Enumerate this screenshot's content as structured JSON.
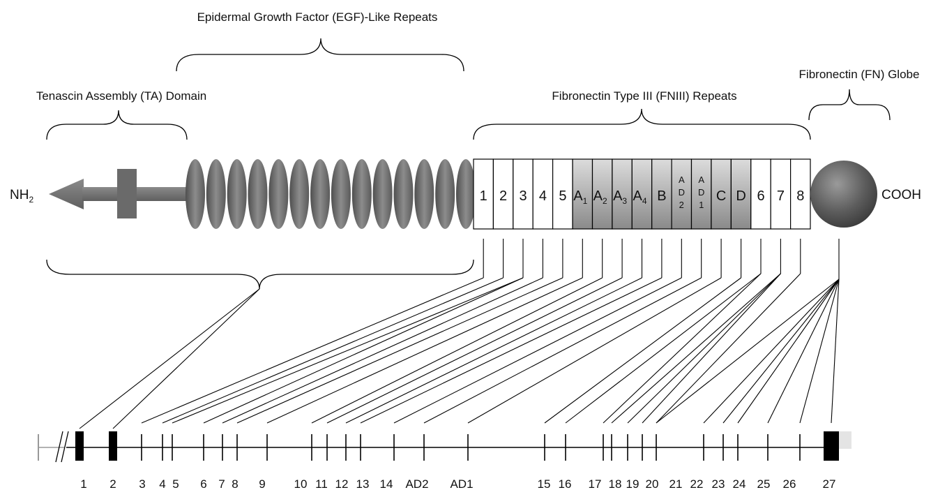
{
  "labels": {
    "egf_repeats": "Epidermal Growth Factor (EGF)-Like Repeats",
    "ta_domain": "Tenascin Assembly (TA) Domain",
    "fniii_repeats": "Fibronectin Type III (FNIII) Repeats",
    "fn_globe": "Fibronectin (FN) Globe",
    "n_terminus": "NH2",
    "n_terminus_main": "NH",
    "n_terminus_sub": "2",
    "c_terminus": "COOH"
  },
  "fniii_boxes": [
    {
      "id": "1",
      "main": "1"
    },
    {
      "id": "2",
      "main": "2"
    },
    {
      "id": "3",
      "main": "3"
    },
    {
      "id": "4",
      "main": "4"
    },
    {
      "id": "5",
      "main": "5"
    },
    {
      "id": "A1",
      "main": "A",
      "sub": "1",
      "shaded": true
    },
    {
      "id": "A2",
      "main": "A",
      "sub": "2",
      "shaded": true
    },
    {
      "id": "A3",
      "main": "A",
      "sub": "3",
      "shaded": true
    },
    {
      "id": "A4",
      "main": "A",
      "sub": "4",
      "shaded": true
    },
    {
      "id": "B",
      "main": "B",
      "shaded": true
    },
    {
      "id": "AD2",
      "stack": [
        "A",
        "D",
        "2"
      ],
      "shaded": true
    },
    {
      "id": "AD1",
      "stack": [
        "A",
        "D",
        "1"
      ],
      "shaded": true
    },
    {
      "id": "C",
      "main": "C",
      "shaded": true
    },
    {
      "id": "D",
      "main": "D",
      "shaded": true
    },
    {
      "id": "6",
      "main": "6"
    },
    {
      "id": "7",
      "main": "7"
    },
    {
      "id": "8",
      "main": "8"
    }
  ],
  "egf_repeat_count": 14,
  "exons": [
    "1",
    "2",
    "3",
    "4",
    "5",
    "6",
    "7",
    "8",
    "9",
    "10",
    "11",
    "12",
    "13",
    "14",
    "AD2",
    "AD1",
    "15",
    "16",
    "17",
    "18",
    "19",
    "20",
    "21",
    "22",
    "23",
    "24",
    "25",
    "26",
    "27"
  ],
  "colors": {
    "domain_gray": "#6e6e6e",
    "globe_gray": "#555555",
    "shaded_box_light": "#d6d6d6",
    "shaded_box_dark": "#8a8a8a",
    "line": "#000000",
    "utr_light": "#e4e4e4"
  }
}
